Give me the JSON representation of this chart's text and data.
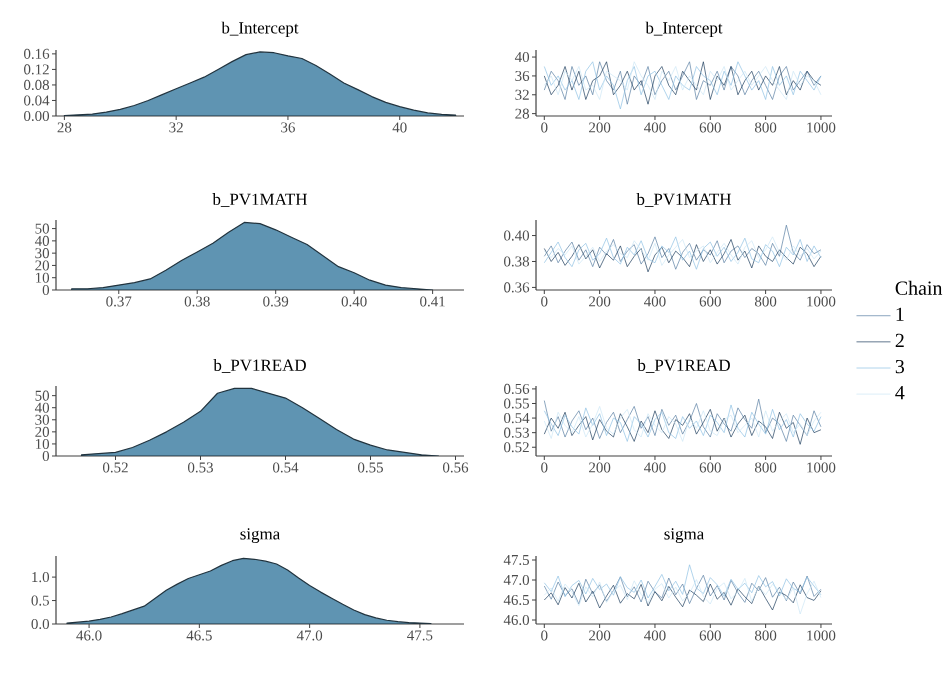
{
  "chart_data": [
    {
      "type": "area",
      "title": "b_Intercept",
      "color": "#5f94b2",
      "xlim": [
        27.7,
        42.3
      ],
      "ylim": [
        0,
        0.17
      ],
      "xticks": [
        28,
        32,
        36,
        40
      ],
      "yticks": [
        {
          "value": 0,
          "label": "0.00"
        },
        0.04,
        0.08,
        0.12,
        0.16
      ],
      "x": [
        28,
        28.5,
        29,
        29.5,
        30,
        30.5,
        31,
        31.5,
        32,
        32.5,
        33,
        33.5,
        34,
        34.5,
        35,
        35.5,
        36,
        36.5,
        37,
        37.5,
        38,
        38.5,
        39,
        39.5,
        40,
        40.5,
        41,
        41.5,
        42
      ],
      "values": [
        0.001,
        0.003,
        0.005,
        0.01,
        0.017,
        0.027,
        0.04,
        0.055,
        0.07,
        0.085,
        0.1,
        0.12,
        0.14,
        0.158,
        0.165,
        0.163,
        0.155,
        0.148,
        0.13,
        0.108,
        0.085,
        0.068,
        0.05,
        0.035,
        0.024,
        0.015,
        0.008,
        0.004,
        0.002
      ]
    },
    {
      "type": "line",
      "title": "b_Intercept",
      "xlim": [
        -30,
        1040
      ],
      "ylim": [
        27.5,
        41.5
      ],
      "xticks": [
        0,
        200,
        400,
        600,
        800,
        1000
      ],
      "yticks": [
        28,
        32,
        36,
        40
      ],
      "x": [
        0,
        25,
        50,
        75,
        100,
        125,
        150,
        175,
        200,
        225,
        250,
        275,
        300,
        325,
        350,
        375,
        400,
        425,
        450,
        475,
        500,
        525,
        550,
        575,
        600,
        625,
        650,
        675,
        700,
        725,
        750,
        775,
        800,
        825,
        850,
        875,
        900,
        925,
        950,
        975,
        1000
      ],
      "series": [
        {
          "color": "#5a7fa3",
          "values": [
            33,
            37,
            35,
            31,
            38,
            34,
            36,
            32,
            39,
            35,
            33,
            37,
            30,
            36,
            34,
            38,
            32,
            35,
            37,
            33,
            36,
            39,
            31,
            35,
            34,
            37,
            33,
            38,
            36,
            32,
            35,
            37,
            34,
            31,
            36,
            38,
            33,
            35,
            37,
            34,
            36
          ]
        },
        {
          "color": "#1d3c5c",
          "values": [
            36,
            32,
            34,
            38,
            33,
            37,
            31,
            35,
            36,
            39,
            32,
            34,
            37,
            33,
            35,
            30,
            36,
            38,
            34,
            32,
            37,
            35,
            33,
            39,
            31,
            36,
            34,
            38,
            32,
            35,
            37,
            33,
            36,
            34,
            38,
            32,
            35,
            33,
            37,
            35,
            34
          ]
        },
        {
          "color": "#8fc1e3",
          "values": [
            38,
            34,
            36,
            33,
            35,
            31,
            37,
            39,
            33,
            36,
            34,
            29,
            35,
            38,
            32,
            36,
            37,
            34,
            31,
            36,
            34,
            33,
            38,
            36,
            35,
            32,
            37,
            34,
            39,
            36,
            33,
            35,
            31,
            38,
            34,
            36,
            32,
            37,
            35,
            33,
            36
          ]
        },
        {
          "color": "#cde6f5",
          "values": [
            34,
            36,
            32,
            37,
            35,
            38,
            33,
            34,
            31,
            37,
            36,
            35,
            33,
            39,
            36,
            34,
            31,
            37,
            35,
            38,
            33,
            36,
            34,
            32,
            37,
            35,
            38,
            33,
            35,
            37,
            34,
            36,
            38,
            35,
            33,
            31,
            37,
            34,
            36,
            35,
            32
          ]
        }
      ]
    },
    {
      "type": "area",
      "title": "b_PV1MATH",
      "color": "#5f94b2",
      "xlim": [
        0.362,
        0.414
      ],
      "ylim": [
        0,
        57
      ],
      "xticks": [
        0.37,
        0.38,
        0.39,
        {
          "value": 0.4,
          "label": "0.40"
        },
        0.41
      ],
      "yticks": [
        0,
        10,
        20,
        30,
        40,
        50
      ],
      "x": [
        0.364,
        0.366,
        0.368,
        0.37,
        0.372,
        0.374,
        0.376,
        0.378,
        0.38,
        0.382,
        0.384,
        0.386,
        0.388,
        0.39,
        0.392,
        0.394,
        0.396,
        0.398,
        0.4,
        0.402,
        0.404,
        0.406,
        0.408,
        0.41
      ],
      "values": [
        1,
        1,
        2,
        4,
        6,
        9,
        16,
        24,
        31,
        38,
        47,
        55,
        54,
        49,
        43,
        37,
        28,
        19,
        14,
        8,
        4,
        2,
        1,
        0
      ]
    },
    {
      "type": "line",
      "title": "b_PV1MATH",
      "xlim": [
        -30,
        1040
      ],
      "ylim": [
        0.358,
        0.412
      ],
      "xticks": [
        0,
        200,
        400,
        600,
        800,
        1000
      ],
      "yticks": [
        0.36,
        0.38,
        {
          "value": 0.4,
          "label": "0.40"
        }
      ],
      "legend": "right",
      "legend_title": "Chain",
      "x": [
        0,
        25,
        50,
        75,
        100,
        125,
        150,
        175,
        200,
        225,
        250,
        275,
        300,
        325,
        350,
        375,
        400,
        425,
        450,
        475,
        500,
        525,
        550,
        575,
        600,
        625,
        650,
        675,
        700,
        725,
        750,
        775,
        800,
        825,
        850,
        875,
        900,
        925,
        950,
        975,
        1000
      ],
      "series": [
        {
          "name": "1",
          "color": "#5a7fa3",
          "values": [
            0.384,
            0.392,
            0.379,
            0.388,
            0.395,
            0.381,
            0.389,
            0.376,
            0.391,
            0.385,
            0.397,
            0.38,
            0.388,
            0.393,
            0.378,
            0.386,
            0.399,
            0.383,
            0.39,
            0.374,
            0.387,
            0.394,
            0.381,
            0.389,
            0.385,
            0.396,
            0.379,
            0.388,
            0.392,
            0.383,
            0.39,
            0.386,
            0.377,
            0.394,
            0.384,
            0.408,
            0.387,
            0.381,
            0.393,
            0.386,
            0.389
          ]
        },
        {
          "name": "2",
          "color": "#1d3c5c",
          "values": [
            0.39,
            0.38,
            0.387,
            0.377,
            0.384,
            0.393,
            0.382,
            0.389,
            0.375,
            0.386,
            0.381,
            0.392,
            0.376,
            0.384,
            0.39,
            0.372,
            0.385,
            0.391,
            0.379,
            0.388,
            0.383,
            0.376,
            0.393,
            0.38,
            0.389,
            0.378,
            0.386,
            0.397,
            0.381,
            0.388,
            0.375,
            0.392,
            0.384,
            0.38,
            0.389,
            0.383,
            0.378,
            0.391,
            0.386,
            0.376,
            0.384
          ]
        },
        {
          "name": "3",
          "color": "#8fc1e3",
          "values": [
            0.379,
            0.387,
            0.395,
            0.383,
            0.376,
            0.389,
            0.394,
            0.381,
            0.386,
            0.398,
            0.383,
            0.378,
            0.391,
            0.385,
            0.396,
            0.382,
            0.379,
            0.392,
            0.387,
            0.399,
            0.381,
            0.388,
            0.374,
            0.39,
            0.395,
            0.384,
            0.391,
            0.38,
            0.387,
            0.398,
            0.382,
            0.379,
            0.393,
            0.388,
            0.376,
            0.391,
            0.385,
            0.397,
            0.38,
            0.392,
            0.383
          ]
        },
        {
          "name": "4",
          "color": "#cde6f5",
          "values": [
            0.388,
            0.383,
            0.39,
            0.385,
            0.392,
            0.378,
            0.384,
            0.391,
            0.38,
            0.388,
            0.393,
            0.386,
            0.383,
            0.396,
            0.389,
            0.381,
            0.394,
            0.377,
            0.385,
            0.391,
            0.397,
            0.383,
            0.388,
            0.392,
            0.379,
            0.387,
            0.394,
            0.385,
            0.378,
            0.391,
            0.396,
            0.383,
            0.389,
            0.399,
            0.387,
            0.381,
            0.392,
            0.384,
            0.39,
            0.382,
            0.388
          ]
        }
      ]
    },
    {
      "type": "area",
      "title": "b_PV1READ",
      "color": "#5f94b2",
      "xlim": [
        0.513,
        0.561
      ],
      "ylim": [
        0,
        58
      ],
      "xticks": [
        0.52,
        0.53,
        0.54,
        0.55,
        0.56
      ],
      "yticks": [
        0,
        10,
        20,
        30,
        40,
        50
      ],
      "x": [
        0.516,
        0.518,
        0.52,
        0.522,
        0.524,
        0.526,
        0.528,
        0.53,
        0.532,
        0.534,
        0.536,
        0.538,
        0.54,
        0.542,
        0.544,
        0.546,
        0.548,
        0.55,
        0.552,
        0.554,
        0.556,
        0.558
      ],
      "values": [
        1,
        2,
        3,
        7,
        13,
        20,
        28,
        37,
        52,
        56,
        56,
        52,
        48,
        40,
        31,
        22,
        14,
        9,
        5,
        3,
        1,
        0
      ]
    },
    {
      "type": "line",
      "title": "b_PV1READ",
      "xlim": [
        -30,
        1040
      ],
      "ylim": [
        0.514,
        0.562
      ],
      "xticks": [
        0,
        200,
        400,
        600,
        800,
        1000
      ],
      "yticks": [
        0.52,
        0.53,
        0.54,
        0.55,
        0.56
      ],
      "x": [
        0,
        25,
        50,
        75,
        100,
        125,
        150,
        175,
        200,
        225,
        250,
        275,
        300,
        325,
        350,
        375,
        400,
        425,
        450,
        475,
        500,
        525,
        550,
        575,
        600,
        625,
        650,
        675,
        700,
        725,
        750,
        775,
        800,
        825,
        850,
        875,
        900,
        925,
        950,
        975,
        1000
      ],
      "series": [
        {
          "color": "#5a7fa3",
          "values": [
            0.552,
            0.531,
            0.541,
            0.527,
            0.538,
            0.545,
            0.532,
            0.54,
            0.526,
            0.537,
            0.544,
            0.53,
            0.539,
            0.548,
            0.533,
            0.541,
            0.528,
            0.546,
            0.535,
            0.542,
            0.529,
            0.538,
            0.55,
            0.534,
            0.527,
            0.543,
            0.536,
            0.531,
            0.547,
            0.539,
            0.533,
            0.553,
            0.53,
            0.54,
            0.536,
            0.524,
            0.542,
            0.535,
            0.528,
            0.545,
            0.534
          ]
        },
        {
          "color": "#1d3c5c",
          "values": [
            0.529,
            0.54,
            0.533,
            0.544,
            0.528,
            0.535,
            0.541,
            0.525,
            0.539,
            0.531,
            0.527,
            0.543,
            0.534,
            0.524,
            0.538,
            0.53,
            0.545,
            0.532,
            0.526,
            0.539,
            0.535,
            0.543,
            0.529,
            0.537,
            0.546,
            0.531,
            0.54,
            0.527,
            0.536,
            0.542,
            0.528,
            0.538,
            0.534,
            0.526,
            0.544,
            0.533,
            0.537,
            0.522,
            0.54,
            0.53,
            0.532
          ]
        },
        {
          "color": "#8fc1e3",
          "values": [
            0.545,
            0.536,
            0.528,
            0.542,
            0.534,
            0.529,
            0.547,
            0.535,
            0.543,
            0.528,
            0.54,
            0.537,
            0.524,
            0.541,
            0.536,
            0.527,
            0.539,
            0.544,
            0.53,
            0.526,
            0.541,
            0.533,
            0.538,
            0.528,
            0.542,
            0.537,
            0.53,
            0.549,
            0.533,
            0.527,
            0.544,
            0.536,
            0.529,
            0.546,
            0.532,
            0.539,
            0.527,
            0.543,
            0.536,
            0.531,
            0.541
          ]
        },
        {
          "color": "#cde6f5",
          "values": [
            0.538,
            0.526,
            0.544,
            0.535,
            0.53,
            0.541,
            0.527,
            0.536,
            0.548,
            0.533,
            0.529,
            0.54,
            0.546,
            0.532,
            0.527,
            0.543,
            0.535,
            0.53,
            0.541,
            0.536,
            0.524,
            0.54,
            0.533,
            0.545,
            0.531,
            0.528,
            0.539,
            0.542,
            0.53,
            0.535,
            0.54,
            0.527,
            0.545,
            0.531,
            0.538,
            0.543,
            0.53,
            0.536,
            0.528,
            0.538,
            0.544
          ]
        }
      ]
    },
    {
      "type": "area",
      "title": "sigma",
      "color": "#5f94b2",
      "xlim": [
        45.85,
        47.7
      ],
      "ylim": [
        0,
        1.45
      ],
      "xticks": [
        {
          "value": 46,
          "label": "46.0"
        },
        46.5,
        {
          "value": 47,
          "label": "47.0"
        },
        47.5
      ],
      "yticks": [
        {
          "value": 0,
          "label": "0.0"
        },
        0.5,
        {
          "value": 1,
          "label": "1.0"
        }
      ],
      "x": [
        45.9,
        45.95,
        46,
        46.05,
        46.1,
        46.15,
        46.2,
        46.25,
        46.3,
        46.35,
        46.4,
        46.45,
        46.5,
        46.55,
        46.6,
        46.65,
        46.7,
        46.75,
        46.8,
        46.85,
        46.9,
        46.95,
        47,
        47.05,
        47.1,
        47.15,
        47.2,
        47.25,
        47.3,
        47.35,
        47.4,
        47.45,
        47.5,
        47.55
      ],
      "values": [
        0.02,
        0.04,
        0.06,
        0.1,
        0.15,
        0.22,
        0.3,
        0.38,
        0.55,
        0.72,
        0.85,
        0.97,
        1.05,
        1.13,
        1.25,
        1.35,
        1.4,
        1.38,
        1.34,
        1.28,
        1.15,
        0.98,
        0.82,
        0.68,
        0.55,
        0.42,
        0.3,
        0.2,
        0.13,
        0.08,
        0.05,
        0.03,
        0.02,
        0.01
      ]
    },
    {
      "type": "line",
      "title": "sigma",
      "xlim": [
        -30,
        1040
      ],
      "ylim": [
        45.9,
        47.6
      ],
      "xticks": [
        0,
        200,
        400,
        600,
        800,
        1000
      ],
      "yticks": [
        {
          "value": 46,
          "label": "46.0"
        },
        46.5,
        {
          "value": 47,
          "label": "47.0"
        },
        47.5
      ],
      "x": [
        0,
        25,
        50,
        75,
        100,
        125,
        150,
        175,
        200,
        225,
        250,
        275,
        300,
        325,
        350,
        375,
        400,
        425,
        450,
        475,
        500,
        525,
        550,
        575,
        600,
        625,
        650,
        675,
        700,
        725,
        750,
        775,
        800,
        825,
        850,
        875,
        900,
        925,
        950,
        975,
        1000
      ],
      "series": [
        {
          "color": "#5a7fa3",
          "values": [
            46.85,
            46.52,
            46.95,
            46.61,
            46.78,
            46.4,
            47.02,
            46.66,
            46.88,
            46.47,
            46.74,
            47.08,
            46.58,
            46.83,
            46.45,
            46.97,
            46.7,
            46.55,
            47.05,
            46.63,
            46.9,
            46.41,
            46.79,
            47.12,
            46.6,
            46.86,
            46.5,
            46.99,
            46.68,
            46.44,
            46.92,
            46.73,
            47.06,
            46.57,
            46.82,
            46.48,
            46.95,
            46.65,
            47.1,
            46.59,
            46.77
          ]
        },
        {
          "color": "#1d3c5c",
          "values": [
            46.5,
            46.68,
            46.38,
            46.81,
            46.55,
            46.92,
            46.45,
            46.72,
            46.3,
            46.6,
            46.87,
            46.42,
            46.66,
            46.53,
            46.89,
            46.35,
            46.71,
            46.48,
            46.84,
            46.57,
            46.33,
            46.75,
            46.62,
            46.46,
            46.9,
            46.52,
            46.69,
            46.37,
            46.78,
            46.58,
            46.41,
            46.85,
            46.54,
            46.25,
            46.7,
            46.61,
            46.43,
            46.88,
            46.56,
            46.49,
            46.73
          ]
        },
        {
          "color": "#8fc1e3",
          "values": [
            46.93,
            46.71,
            47.1,
            46.58,
            46.86,
            46.99,
            46.65,
            47.04,
            46.76,
            46.9,
            46.62,
            47.08,
            46.81,
            46.69,
            47.0,
            46.55,
            46.84,
            47.14,
            46.73,
            46.97,
            46.64,
            47.38,
            46.8,
            46.66,
            47.06,
            46.88,
            46.59,
            47.02,
            46.77,
            46.92,
            46.68,
            47.11,
            46.83,
            46.96,
            46.6,
            47.03,
            46.79,
            46.7,
            47.07,
            46.85,
            46.63
          ]
        },
        {
          "color": "#cde6f5",
          "values": [
            46.62,
            46.8,
            46.47,
            46.9,
            46.69,
            46.36,
            46.83,
            46.58,
            46.95,
            46.44,
            46.72,
            46.87,
            46.51,
            46.98,
            46.64,
            46.43,
            46.77,
            46.91,
            46.55,
            46.82,
            46.48,
            46.67,
            47.01,
            46.59,
            46.4,
            46.79,
            46.93,
            46.53,
            46.71,
            47.04,
            46.46,
            46.84,
            46.63,
            46.89,
            46.74,
            46.5,
            46.81,
            46.15,
            46.66,
            46.97,
            46.56
          ]
        }
      ]
    }
  ]
}
